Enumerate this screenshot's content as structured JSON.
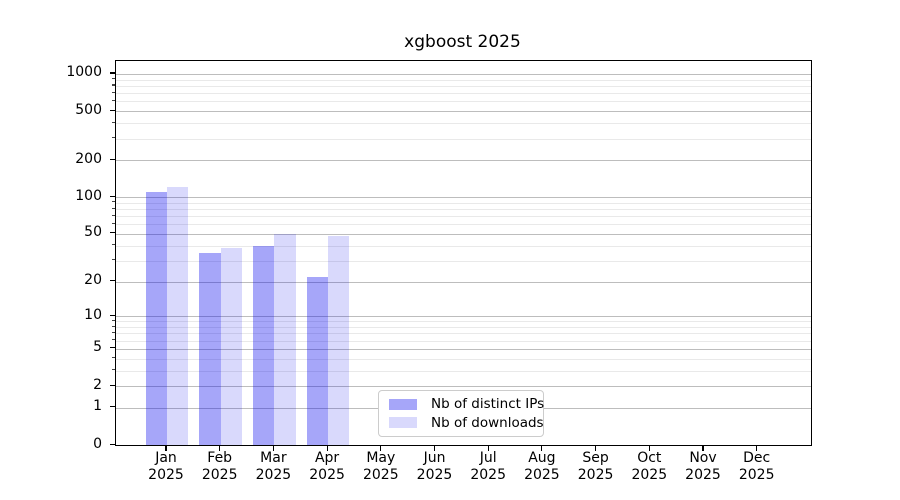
{
  "title": "xgboost 2025",
  "legend": {
    "items": [
      {
        "label": "Nb of distinct IPs",
        "swatch": "#a6a6f9"
      },
      {
        "label": "Nb of downloads",
        "swatch": "#d9d9fc"
      }
    ]
  },
  "chart_data": {
    "type": "bar",
    "title": "xgboost 2025",
    "scale": "log10(value+1)",
    "categories": [
      "Jan 2025",
      "Feb 2025",
      "Mar 2025",
      "Apr 2025",
      "May 2025",
      "Jun 2025",
      "Jul 2025",
      "Aug 2025",
      "Sep 2025",
      "Oct 2025",
      "Nov 2025",
      "Dec 2025"
    ],
    "series": [
      {
        "name": "Nb of distinct IPs",
        "color": "#a6a6f9",
        "fill": "rgba(0,0,238,0.35)",
        "values": [
          110,
          35,
          40,
          22,
          0,
          0,
          0,
          0,
          0,
          0,
          0,
          0
        ]
      },
      {
        "name": "Nb of downloads",
        "color": "#d9d9fc",
        "fill": "rgba(0,0,238,0.15)",
        "values": [
          120,
          38,
          50,
          48,
          0,
          0,
          0,
          0,
          0,
          0,
          0,
          0
        ]
      }
    ],
    "y_ticks": [
      0,
      1,
      2,
      5,
      10,
      20,
      50,
      100,
      200,
      500,
      1000
    ],
    "y_minor_ticks": [
      3,
      4,
      6,
      7,
      8,
      9,
      30,
      40,
      60,
      70,
      80,
      90,
      300,
      400,
      600,
      700,
      800,
      900
    ],
    "ylim": [
      0,
      1272
    ],
    "grid": "both",
    "grid_major_color": "#bdbdbd",
    "grid_minor_color": "#e9e9e9",
    "legend_position": "lower-center-inside",
    "xlabel": "",
    "ylabel": ""
  }
}
